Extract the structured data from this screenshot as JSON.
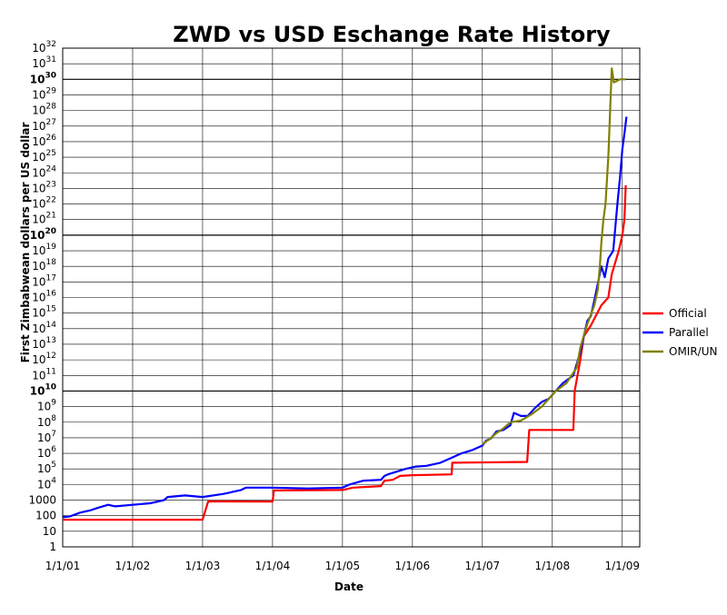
{
  "chart_data": {
    "type": "line",
    "title": "ZWD vs USD Eschange Rate History",
    "xlabel": "Date",
    "ylabel": "First Zimbabwean dollars per US dollar",
    "y_scale": "log",
    "ylim_exponent": [
      0,
      32
    ],
    "y_ticks": [
      {
        "base": "1",
        "exp": ""
      },
      {
        "base": "10",
        "exp": ""
      },
      {
        "base": "100",
        "exp": ""
      },
      {
        "base": "1000",
        "exp": ""
      },
      {
        "base": "10",
        "exp": "4"
      },
      {
        "base": "10",
        "exp": "5"
      },
      {
        "base": "10",
        "exp": "6"
      },
      {
        "base": "10",
        "exp": "7"
      },
      {
        "base": "10",
        "exp": "8"
      },
      {
        "base": "10",
        "exp": "9"
      },
      {
        "base": "10",
        "exp": "10"
      },
      {
        "base": "10",
        "exp": "11"
      },
      {
        "base": "10",
        "exp": "12"
      },
      {
        "base": "10",
        "exp": "13"
      },
      {
        "base": "10",
        "exp": "14"
      },
      {
        "base": "10",
        "exp": "15"
      },
      {
        "base": "10",
        "exp": "16"
      },
      {
        "base": "10",
        "exp": "17"
      },
      {
        "base": "10",
        "exp": "18"
      },
      {
        "base": "10",
        "exp": "19"
      },
      {
        "base": "10",
        "exp": "20"
      },
      {
        "base": "10",
        "exp": "21"
      },
      {
        "base": "10",
        "exp": "22"
      },
      {
        "base": "10",
        "exp": "23"
      },
      {
        "base": "10",
        "exp": "24"
      },
      {
        "base": "10",
        "exp": "25"
      },
      {
        "base": "10",
        "exp": "26"
      },
      {
        "base": "10",
        "exp": "27"
      },
      {
        "base": "10",
        "exp": "28"
      },
      {
        "base": "10",
        "exp": "29"
      },
      {
        "base": "10",
        "exp": "30"
      },
      {
        "base": "10",
        "exp": "31"
      },
      {
        "base": "10",
        "exp": "32"
      }
    ],
    "bold_tick_exponents": [
      10,
      20,
      30
    ],
    "x_ticks": [
      {
        "label": "1/1/01",
        "value": 2001
      },
      {
        "label": "1/1/02",
        "value": 2002
      },
      {
        "label": "1/1/03",
        "value": 2003
      },
      {
        "label": "1/1/04",
        "value": 2004
      },
      {
        "label": "1/1/05",
        "value": 2005
      },
      {
        "label": "1/1/06",
        "value": 2006
      },
      {
        "label": "1/1/07",
        "value": 2007
      },
      {
        "label": "1/1/08",
        "value": 2008
      },
      {
        "label": "1/1/09",
        "value": 2009
      }
    ],
    "xlim": [
      2001,
      2009.25
    ],
    "grid": true,
    "legend_position": "right",
    "series": [
      {
        "name": "Official",
        "color": "#ff0000",
        "points": [
          [
            2001.0,
            1.74
          ],
          [
            2003.0,
            1.74
          ],
          [
            2003.08,
            2.92
          ],
          [
            2004.0,
            2.9
          ],
          [
            2004.02,
            3.62
          ],
          [
            2005.0,
            3.65
          ],
          [
            2005.15,
            3.8
          ],
          [
            2005.55,
            3.9
          ],
          [
            2005.6,
            4.25
          ],
          [
            2005.72,
            4.3
          ],
          [
            2005.82,
            4.55
          ],
          [
            2006.0,
            4.6
          ],
          [
            2006.56,
            4.65
          ],
          [
            2006.57,
            5.4
          ],
          [
            2007.64,
            5.45
          ],
          [
            2007.67,
            7.5
          ],
          [
            2008.3,
            7.5
          ],
          [
            2008.32,
            10.0
          ],
          [
            2008.4,
            12.0
          ],
          [
            2008.45,
            13.5
          ],
          [
            2008.55,
            14.2
          ],
          [
            2008.7,
            15.5
          ],
          [
            2008.8,
            16.0
          ],
          [
            2008.85,
            17.5
          ],
          [
            2008.95,
            19.0
          ],
          [
            2009.0,
            20.0
          ],
          [
            2009.03,
            21.0
          ],
          [
            2009.05,
            23.2
          ]
        ]
      },
      {
        "name": "Parallel",
        "color": "#0000ff",
        "points": [
          [
            2001.0,
            1.9
          ],
          [
            2001.1,
            1.95
          ],
          [
            2001.25,
            2.2
          ],
          [
            2001.4,
            2.35
          ],
          [
            2001.5,
            2.5
          ],
          [
            2001.65,
            2.7
          ],
          [
            2001.75,
            2.6
          ],
          [
            2002.0,
            2.7
          ],
          [
            2002.25,
            2.8
          ],
          [
            2002.45,
            3.0
          ],
          [
            2002.5,
            3.2
          ],
          [
            2002.75,
            3.3
          ],
          [
            2003.0,
            3.2
          ],
          [
            2003.3,
            3.4
          ],
          [
            2003.55,
            3.65
          ],
          [
            2003.62,
            3.8
          ],
          [
            2004.0,
            3.8
          ],
          [
            2004.5,
            3.75
          ],
          [
            2005.0,
            3.8
          ],
          [
            2005.1,
            4.0
          ],
          [
            2005.3,
            4.25
          ],
          [
            2005.55,
            4.3
          ],
          [
            2005.6,
            4.55
          ],
          [
            2005.65,
            4.65
          ],
          [
            2005.9,
            5.0
          ],
          [
            2006.05,
            5.15
          ],
          [
            2006.2,
            5.2
          ],
          [
            2006.4,
            5.4
          ],
          [
            2006.55,
            5.7
          ],
          [
            2006.7,
            6.0
          ],
          [
            2006.85,
            6.2
          ],
          [
            2007.0,
            6.5
          ],
          [
            2007.05,
            6.8
          ],
          [
            2007.12,
            6.95
          ],
          [
            2007.2,
            7.4
          ],
          [
            2007.3,
            7.5
          ],
          [
            2007.4,
            7.8
          ],
          [
            2007.45,
            8.6
          ],
          [
            2007.55,
            8.4
          ],
          [
            2007.65,
            8.4
          ],
          [
            2007.75,
            8.9
          ],
          [
            2007.85,
            9.3
          ],
          [
            2007.95,
            9.5
          ],
          [
            2008.05,
            10.0
          ],
          [
            2008.15,
            10.5
          ],
          [
            2008.3,
            11.0
          ],
          [
            2008.4,
            12.5
          ],
          [
            2008.45,
            13.5
          ],
          [
            2008.5,
            14.5
          ],
          [
            2008.55,
            14.8
          ],
          [
            2008.6,
            15.8
          ],
          [
            2008.7,
            18.0
          ],
          [
            2008.75,
            17.3
          ],
          [
            2008.8,
            18.5
          ],
          [
            2008.87,
            19.0
          ],
          [
            2008.9,
            20.5
          ],
          [
            2008.93,
            22.0
          ],
          [
            2008.97,
            23.8
          ],
          [
            2009.0,
            25.5
          ],
          [
            2009.03,
            26.5
          ],
          [
            2009.06,
            27.6
          ]
        ]
      },
      {
        "name": "OMIR/UN",
        "color": "#808000",
        "points": [
          [
            2007.0,
            6.6
          ],
          [
            2007.1,
            6.9
          ],
          [
            2007.2,
            7.3
          ],
          [
            2007.3,
            7.6
          ],
          [
            2007.4,
            8.0
          ],
          [
            2007.55,
            8.1
          ],
          [
            2007.7,
            8.5
          ],
          [
            2007.85,
            9.0
          ],
          [
            2007.95,
            9.5
          ],
          [
            2008.05,
            10.0
          ],
          [
            2008.2,
            10.5
          ],
          [
            2008.35,
            11.5
          ],
          [
            2008.4,
            12.8
          ],
          [
            2008.5,
            14.3
          ],
          [
            2008.6,
            15.5
          ],
          [
            2008.65,
            16.5
          ],
          [
            2008.68,
            18.0
          ],
          [
            2008.7,
            19.5
          ],
          [
            2008.73,
            21.0
          ],
          [
            2008.76,
            22.0
          ],
          [
            2008.8,
            25.0
          ],
          [
            2008.85,
            30.7
          ],
          [
            2008.88,
            29.8
          ],
          [
            2008.97,
            30.0
          ],
          [
            2009.05,
            30.0
          ]
        ]
      }
    ]
  }
}
